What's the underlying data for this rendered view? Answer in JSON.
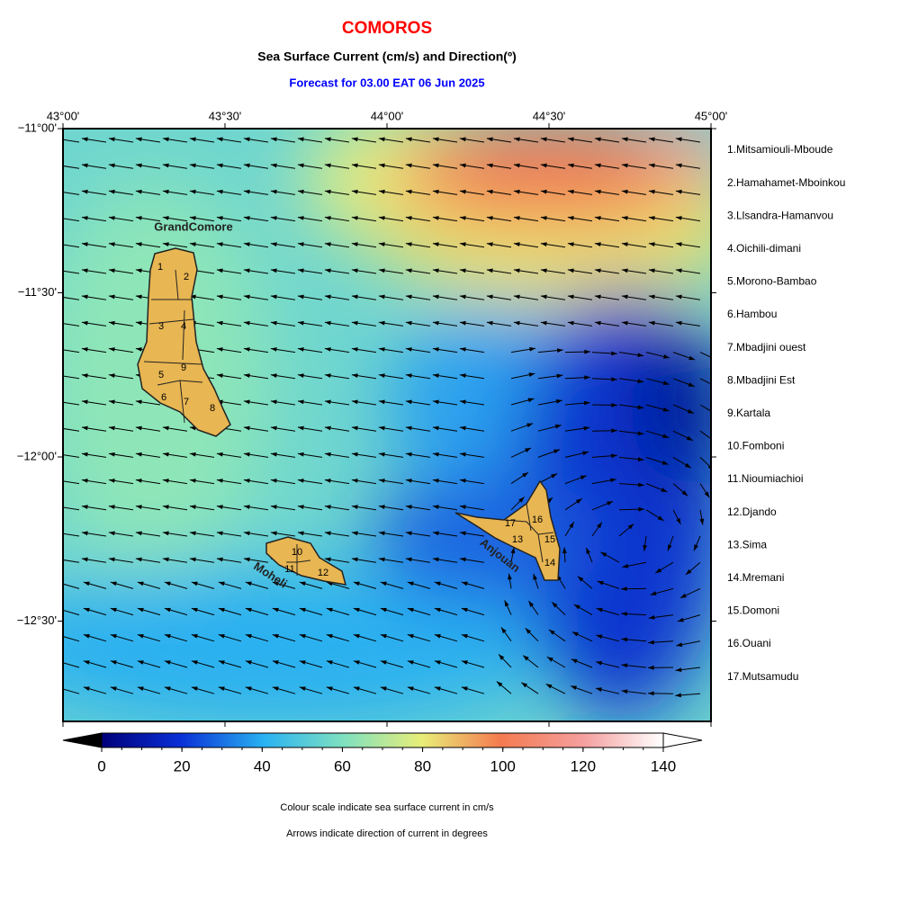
{
  "header": {
    "title": "COMOROS",
    "subtitle": "Sea Surface Current (cm/s) and Direction(º)",
    "forecast": "Forecast for  03.00 EAT 06 Jun 2025"
  },
  "map": {
    "lon_labels": [
      "43°00'",
      "43°30'",
      "44°00'",
      "44°30'",
      "45°00'"
    ],
    "lat_labels": [
      "−11°00'",
      "−11°30'",
      "−12°00'",
      "−12°30'"
    ],
    "island_labels": [
      "GrandComore",
      "Moheli",
      "Anjouan"
    ],
    "region_numbers": [
      "1",
      "2",
      "3",
      "4",
      "5",
      "6",
      "7",
      "8",
      "9",
      "10",
      "11",
      "12",
      "13",
      "14",
      "15",
      "16",
      "17"
    ]
  },
  "legend": {
    "regions": [
      "1.Mitsamiouli-Mboude",
      "2.Hamahamet-Mboinkou",
      "3.Llsandra-Hamanvou",
      "4.Oichili-dimani",
      "5.Morono-Bambao",
      "6.Hambou",
      "7.Mbadjini ouest",
      "8.Mbadjini Est",
      "9.Kartala",
      "10.Fomboni",
      "11.Nioumiachioi",
      "12.Djando",
      "13.Sima",
      "14.Mremani",
      "15.Domoni",
      "16.Ouani",
      "17.Mutsamudu"
    ]
  },
  "colorbar": {
    "ticks": [
      0,
      20,
      40,
      60,
      80,
      100,
      120,
      140
    ]
  },
  "footer": {
    "notes": [
      "Colour scale indicate sea surface current in cm/s",
      "Arrows indicate direction of current in degrees"
    ]
  }
}
